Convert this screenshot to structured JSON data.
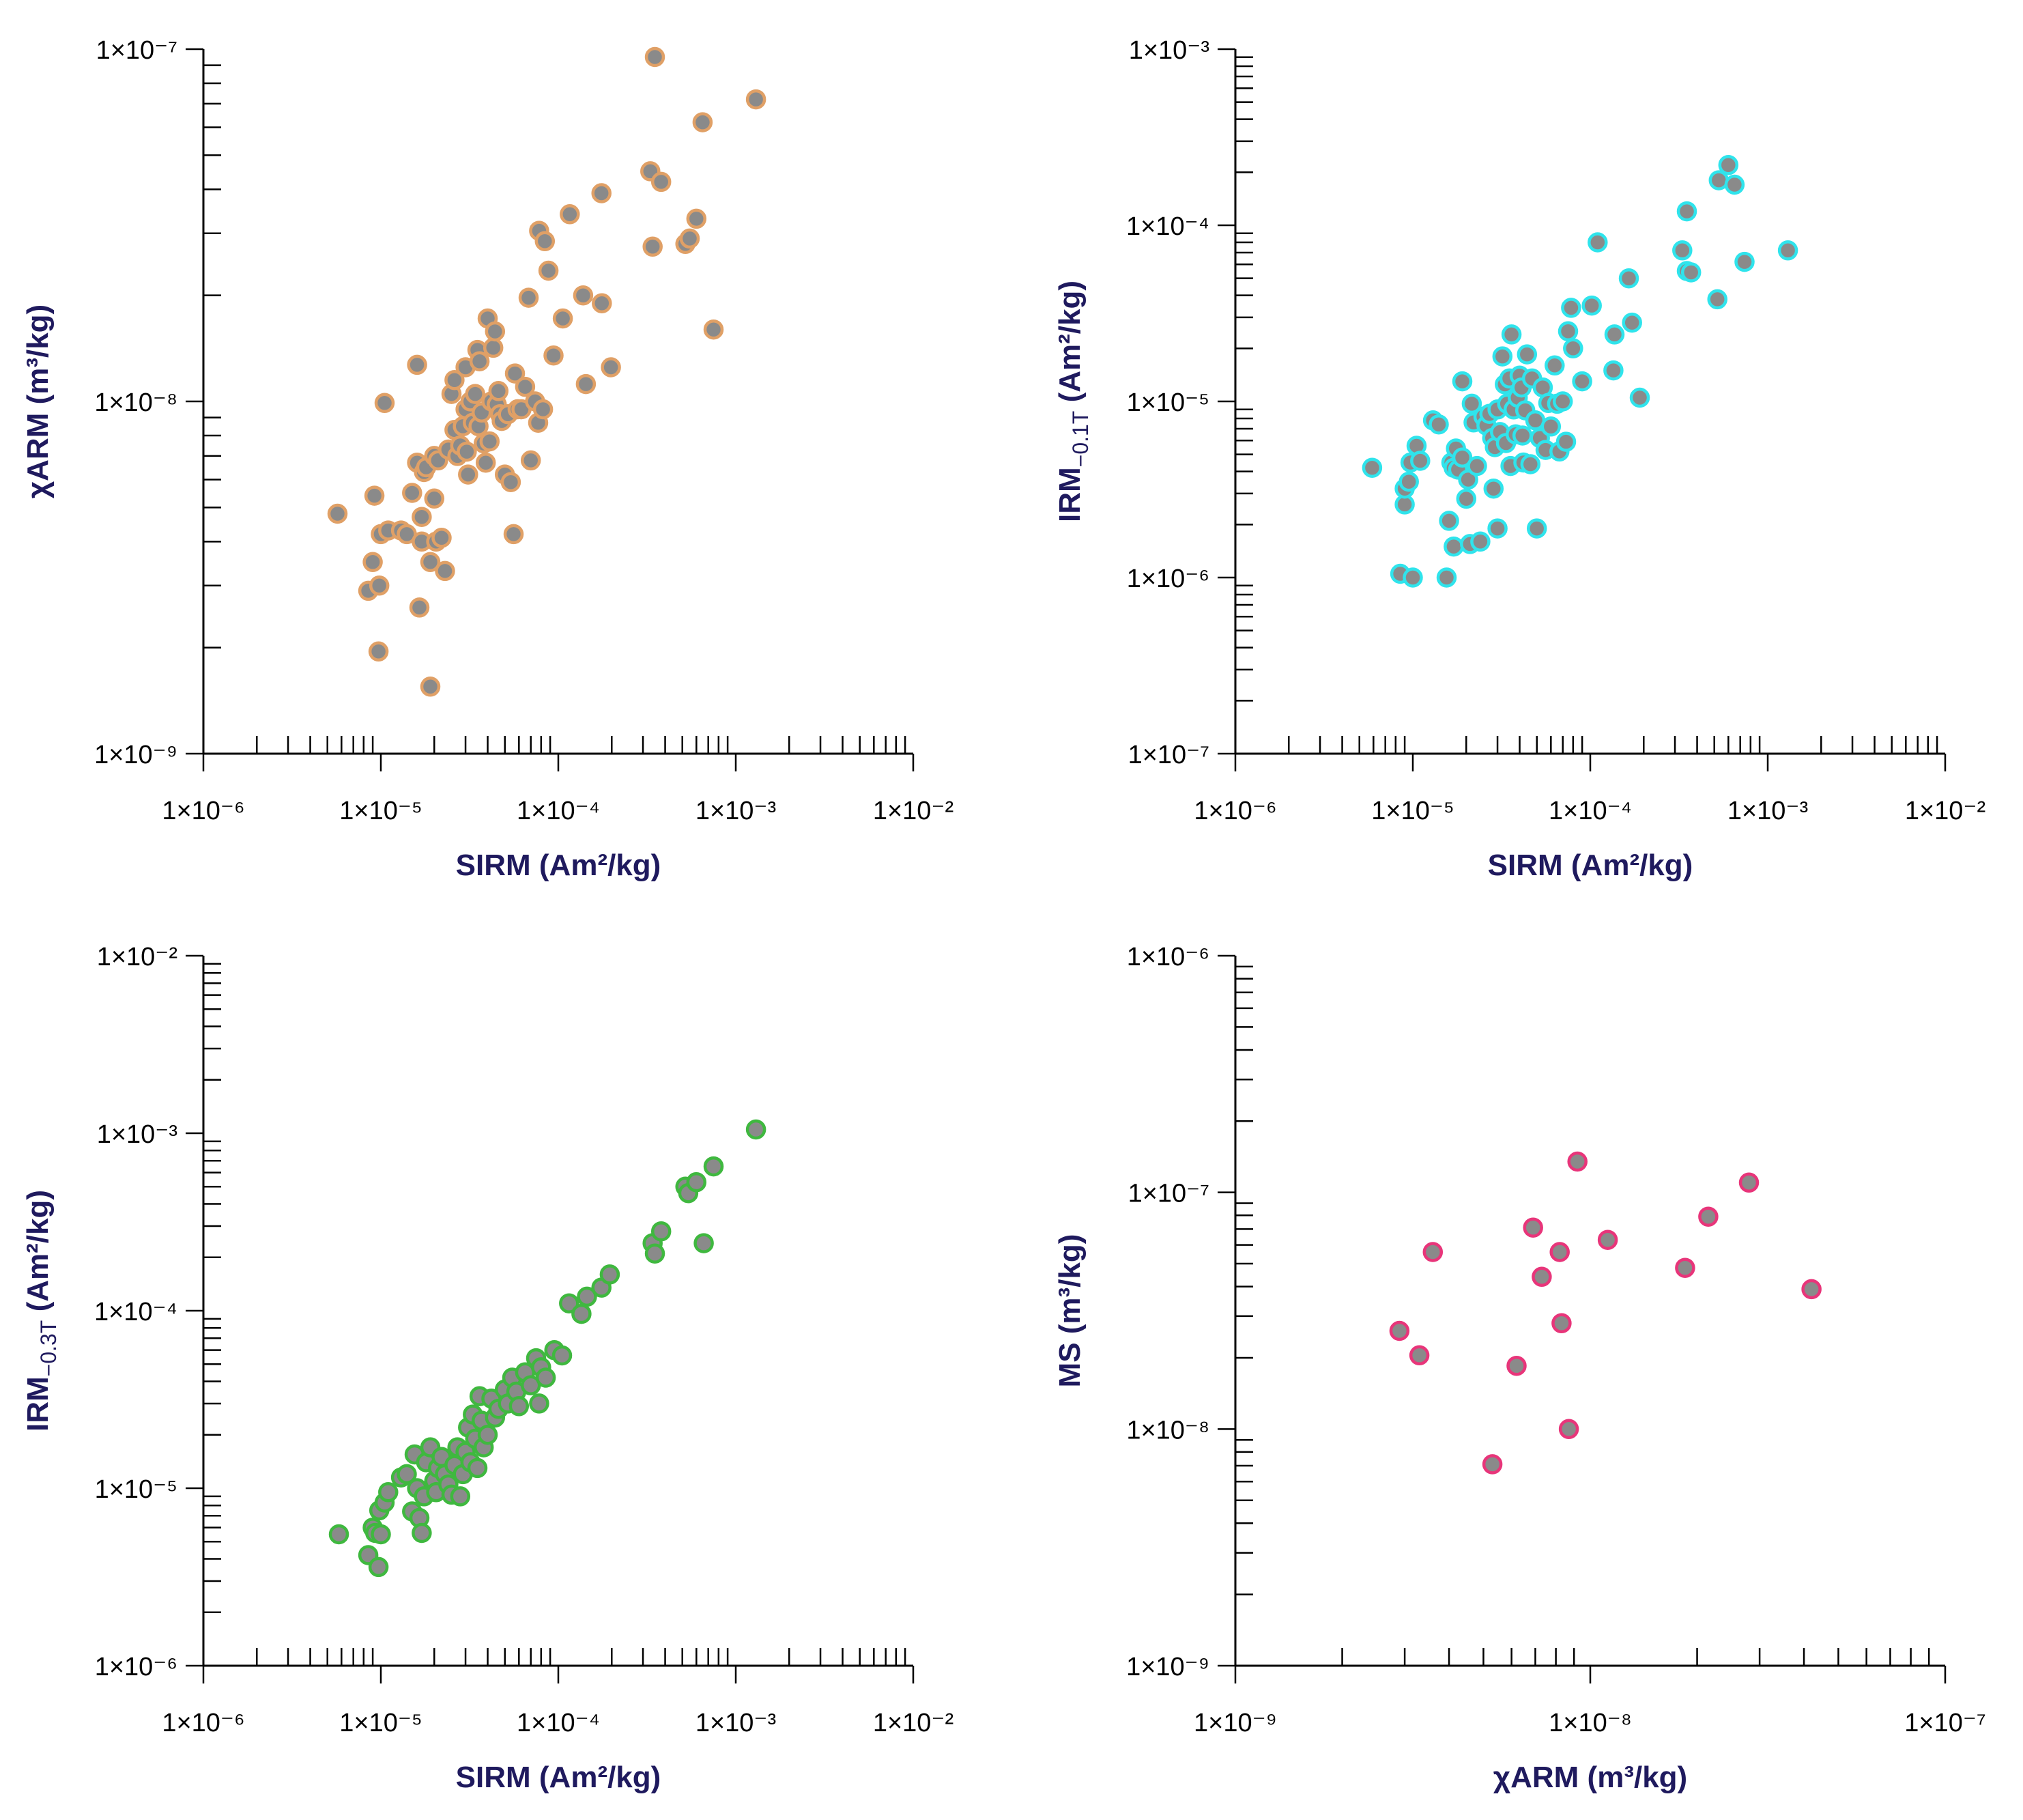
{
  "chart_data": [
    {
      "type": "scatter",
      "xlabel": "SIRM (Am²/kg)",
      "ylabel": "χARM (m³/kg)",
      "x_scale": "log",
      "y_scale": "log",
      "xlim": [
        1e-06,
        0.01
      ],
      "ylim": [
        1e-09,
        1e-07
      ],
      "x_ticks": [
        "1×10⁻⁶",
        "1×10⁻⁵",
        "1×10⁻⁴",
        "1×10⁻³",
        "1×10⁻²"
      ],
      "y_ticks": [
        "1×10⁻⁹",
        "1×10⁻⁸",
        "1×10⁻⁷"
      ],
      "marker_edge_color": "#e0a066",
      "marker_fill_color": "#8a8a8a",
      "points": [
        [
          5.7e-06,
          4.8e-09
        ],
        [
          8.5e-06,
          2.9e-09
        ],
        [
          9e-06,
          3.5e-09
        ],
        [
          9.2e-06,
          5.4e-09
        ],
        [
          9.7e-06,
          1.95e-09
        ],
        [
          9.8e-06,
          3e-09
        ],
        [
          1e-05,
          4.2e-09
        ],
        [
          1.05e-05,
          9.9e-09
        ],
        [
          1.1e-05,
          4.3e-09
        ],
        [
          1.3e-05,
          4.3e-09
        ],
        [
          1.4e-05,
          4.2e-09
        ],
        [
          1.5e-05,
          5.5e-09
        ],
        [
          1.6e-05,
          6.7e-09
        ],
        [
          1.6e-05,
          1.27e-08
        ],
        [
          1.65e-05,
          2.6e-09
        ],
        [
          1.7e-05,
          4.7e-09
        ],
        [
          1.7e-05,
          4e-09
        ],
        [
          1.75e-05,
          6.3e-09
        ],
        [
          1.8e-05,
          6.5e-09
        ],
        [
          1.9e-05,
          1.55e-09
        ],
        [
          1.9e-05,
          3.5e-09
        ],
        [
          2e-05,
          7e-09
        ],
        [
          2e-05,
          5.3e-09
        ],
        [
          2.05e-05,
          4e-09
        ],
        [
          2.1e-05,
          6.8e-09
        ],
        [
          2.2e-05,
          4.1e-09
        ],
        [
          2.3e-05,
          3.3e-09
        ],
        [
          2.4e-05,
          7.3e-09
        ],
        [
          2.5e-05,
          1.05e-08
        ],
        [
          2.6e-05,
          1.15e-08
        ],
        [
          2.6e-05,
          8.3e-09
        ],
        [
          2.7e-05,
          7e-09
        ],
        [
          2.8e-05,
          7.5e-09
        ],
        [
          2.9e-05,
          8.5e-09
        ],
        [
          3e-05,
          1.25e-08
        ],
        [
          3e-05,
          9.5e-09
        ],
        [
          3.05e-05,
          7.2e-09
        ],
        [
          3.1e-05,
          6.2e-09
        ],
        [
          3.2e-05,
          1e-08
        ],
        [
          3.3e-05,
          8.7e-09
        ],
        [
          3.4e-05,
          1.05e-08
        ],
        [
          3.5e-05,
          1.4e-08
        ],
        [
          3.55e-05,
          8.5e-09
        ],
        [
          3.6e-05,
          1.3e-08
        ],
        [
          3.7e-05,
          9.3e-09
        ],
        [
          3.8e-05,
          7.6e-09
        ],
        [
          3.9e-05,
          6.7e-09
        ],
        [
          4e-05,
          1.72e-08
        ],
        [
          4.1e-05,
          7.7e-09
        ],
        [
          4.2e-05,
          1e-08
        ],
        [
          4.3e-05,
          1.42e-08
        ],
        [
          4.4e-05,
          1.58e-08
        ],
        [
          4.5e-05,
          9.8e-09
        ],
        [
          4.6e-05,
          1.07e-08
        ],
        [
          4.7e-05,
          9.2e-09
        ],
        [
          4.8e-05,
          8.8e-09
        ],
        [
          5e-05,
          6.2e-09
        ],
        [
          5.2e-05,
          9.2e-09
        ],
        [
          5.4e-05,
          5.9e-09
        ],
        [
          5.6e-05,
          4.2e-09
        ],
        [
          5.7e-05,
          1.2e-08
        ],
        [
          5.9e-05,
          9.5e-09
        ],
        [
          6.2e-05,
          9.5e-09
        ],
        [
          6.5e-05,
          1.1e-08
        ],
        [
          6.8e-05,
          1.97e-08
        ],
        [
          7e-05,
          6.8e-09
        ],
        [
          7.4e-05,
          1e-08
        ],
        [
          7.7e-05,
          8.7e-09
        ],
        [
          7.8e-05,
          3.05e-08
        ],
        [
          8.2e-05,
          9.5e-09
        ],
        [
          8.4e-05,
          2.85e-08
        ],
        [
          8.8e-05,
          2.35e-08
        ],
        [
          9.4e-05,
          1.35e-08
        ],
        [
          0.000106,
          1.72e-08
        ],
        [
          0.000116,
          3.4e-08
        ],
        [
          0.000138,
          2e-08
        ],
        [
          0.000143,
          1.12e-08
        ],
        [
          0.000175,
          3.9e-08
        ],
        [
          0.000176,
          1.9e-08
        ],
        [
          0.000198,
          1.25e-08
        ],
        [
          0.00033,
          4.5e-08
        ],
        [
          0.00034,
          2.75e-08
        ],
        [
          0.00035,
          9.5e-08
        ],
        [
          0.00038,
          4.2e-08
        ],
        [
          0.00052,
          2.8e-08
        ],
        [
          0.00055,
          2.9e-08
        ],
        [
          0.0006,
          3.3e-08
        ],
        [
          0.00065,
          6.2e-08
        ],
        [
          0.00075,
          1.6e-08
        ],
        [
          0.0013,
          7.2e-08
        ]
      ]
    },
    {
      "type": "scatter",
      "xlabel": "SIRM (Am²/kg)",
      "ylabel_main": "IRM",
      "ylabel_sub": "−0.1T",
      "ylabel_unit": " (Am²/kg)",
      "x_scale": "log",
      "y_scale": "log",
      "xlim": [
        1e-06,
        0.01
      ],
      "ylim": [
        1e-07,
        0.001
      ],
      "x_ticks": [
        "1×10⁻⁶",
        "1×10⁻⁵",
        "1×10⁻⁴",
        "1×10⁻³",
        "1×10⁻²"
      ],
      "y_ticks": [
        "1×10⁻⁷",
        "1×10⁻⁶",
        "1×10⁻⁵",
        "1×10⁻⁴",
        "1×10⁻³"
      ],
      "marker_edge_color": "#2fe4ec",
      "marker_fill_color": "#8a8a8a",
      "points": [
        [
          5.9e-06,
          4.2e-06
        ],
        [
          8.5e-06,
          1.05e-06
        ],
        [
          9e-06,
          2.6e-06
        ],
        [
          9e-06,
          3.2e-06
        ],
        [
          9.5e-06,
          3.5e-06
        ],
        [
          9.7e-06,
          4.5e-06
        ],
        [
          1e-05,
          1e-06
        ],
        [
          1.05e-05,
          5.6e-06
        ],
        [
          1.1e-05,
          4.6e-06
        ],
        [
          1.3e-05,
          7.8e-06
        ],
        [
          1.4e-05,
          7.4e-06
        ],
        [
          1.55e-05,
          1e-06
        ],
        [
          1.6e-05,
          2.1e-06
        ],
        [
          1.65e-05,
          4.5e-06
        ],
        [
          1.7e-05,
          1.5e-06
        ],
        [
          1.7e-05,
          4.2e-06
        ],
        [
          1.75e-05,
          5.4e-06
        ],
        [
          1.8e-05,
          4.1e-06
        ],
        [
          1.9e-05,
          1.3e-05
        ],
        [
          1.9e-05,
          4.8e-06
        ],
        [
          2e-05,
          2.8e-06
        ],
        [
          2.05e-05,
          3.6e-06
        ],
        [
          2.1e-05,
          1.55e-06
        ],
        [
          2.15e-05,
          9.7e-06
        ],
        [
          2.2e-05,
          7.6e-06
        ],
        [
          2.3e-05,
          4.3e-06
        ],
        [
          2.4e-05,
          1.6e-06
        ],
        [
          2.5e-05,
          8.2e-06
        ],
        [
          2.6e-05,
          7.3e-06
        ],
        [
          2.7e-05,
          8.5e-06
        ],
        [
          2.8e-05,
          6.2e-06
        ],
        [
          2.85e-05,
          3.2e-06
        ],
        [
          2.9e-05,
          5.5e-06
        ],
        [
          3e-05,
          1.9e-06
        ],
        [
          3e-05,
          9e-06
        ],
        [
          3.1e-05,
          6.7e-06
        ],
        [
          3.2e-05,
          1.8e-05
        ],
        [
          3.3e-05,
          1.25e-05
        ],
        [
          3.35e-05,
          5.8e-06
        ],
        [
          3.4e-05,
          9.7e-06
        ],
        [
          3.5e-05,
          1.35e-05
        ],
        [
          3.55e-05,
          4.3e-06
        ],
        [
          3.6e-05,
          2.4e-05
        ],
        [
          3.7e-05,
          9e-06
        ],
        [
          3.8e-05,
          6.5e-06
        ],
        [
          3.9e-05,
          1.05e-05
        ],
        [
          4e-05,
          1.4e-05
        ],
        [
          4.1e-05,
          1.2e-05
        ],
        [
          4.15e-05,
          6.4e-06
        ],
        [
          4.2e-05,
          4.5e-06
        ],
        [
          4.3e-05,
          8.9e-06
        ],
        [
          4.4e-05,
          1.85e-05
        ],
        [
          4.6e-05,
          4.4e-06
        ],
        [
          4.7e-05,
          1.35e-05
        ],
        [
          4.9e-05,
          7.8e-06
        ],
        [
          5e-05,
          1.9e-06
        ],
        [
          5.2e-05,
          6.2e-06
        ],
        [
          5.4e-05,
          1.2e-05
        ],
        [
          5.6e-05,
          5.3e-06
        ],
        [
          5.8e-05,
          9.8e-06
        ],
        [
          6e-05,
          7.2e-06
        ],
        [
          6.3e-05,
          1.6e-05
        ],
        [
          6.5e-05,
          9.7e-06
        ],
        [
          6.7e-05,
          5.2e-06
        ],
        [
          7e-05,
          1e-05
        ],
        [
          7.3e-05,
          5.9e-06
        ],
        [
          7.5e-05,
          2.5e-05
        ],
        [
          7.8e-05,
          3.4e-05
        ],
        [
          8e-05,
          2e-05
        ],
        [
          9e-05,
          1.3e-05
        ],
        [
          0.000102,
          3.5e-05
        ],
        [
          0.00011,
          8e-05
        ],
        [
          0.000135,
          1.5e-05
        ],
        [
          0.000137,
          2.4e-05
        ],
        [
          0.000165,
          5e-05
        ],
        [
          0.000172,
          2.8e-05
        ],
        [
          0.00019,
          1.05e-05
        ],
        [
          0.00033,
          7.2e-05
        ],
        [
          0.00035,
          5.5e-05
        ],
        [
          0.00035,
          0.00012
        ],
        [
          0.00037,
          5.4e-05
        ],
        [
          0.00052,
          3.8e-05
        ],
        [
          0.00053,
          0.00018
        ],
        [
          0.0006,
          0.00022
        ],
        [
          0.00065,
          0.00017
        ],
        [
          0.00074,
          6.2e-05
        ],
        [
          0.0013,
          7.2e-05
        ]
      ]
    },
    {
      "type": "scatter",
      "xlabel": "SIRM (Am²/kg)",
      "ylabel_main": "IRM",
      "ylabel_sub": "−0.3T",
      "ylabel_unit": " (Am²/kg)",
      "x_scale": "log",
      "y_scale": "log",
      "xlim": [
        1e-06,
        0.01
      ],
      "ylim": [
        1e-06,
        0.01
      ],
      "x_ticks": [
        "1×10⁻⁶",
        "1×10⁻⁵",
        "1×10⁻⁴",
        "1×10⁻³",
        "1×10⁻²"
      ],
      "y_ticks": [
        "1×10⁻⁶",
        "1×10⁻⁵",
        "1×10⁻⁴",
        "1×10⁻³",
        "1×10⁻²"
      ],
      "marker_edge_color": "#3fb83f",
      "marker_fill_color": "#8a8a8a",
      "points": [
        [
          5.8e-06,
          5.5e-06
        ],
        [
          8.5e-06,
          4.2e-06
        ],
        [
          9e-06,
          6e-06
        ],
        [
          9.3e-06,
          5.6e-06
        ],
        [
          9.7e-06,
          3.6e-06
        ],
        [
          9.8e-06,
          7.5e-06
        ],
        [
          1e-05,
          5.5e-06
        ],
        [
          1.05e-05,
          8.3e-06
        ],
        [
          1.1e-05,
          9.5e-06
        ],
        [
          1.3e-05,
          1.15e-05
        ],
        [
          1.4e-05,
          1.2e-05
        ],
        [
          1.5e-05,
          7.4e-06
        ],
        [
          1.55e-05,
          1.55e-05
        ],
        [
          1.6e-05,
          1e-05
        ],
        [
          1.65e-05,
          6.8e-06
        ],
        [
          1.7e-05,
          5.6e-06
        ],
        [
          1.75e-05,
          9e-06
        ],
        [
          1.8e-05,
          1.4e-05
        ],
        [
          1.9e-05,
          1.7e-05
        ],
        [
          2e-05,
          1.1e-05
        ],
        [
          2.05e-05,
          9.5e-06
        ],
        [
          2.1e-05,
          1.3e-05
        ],
        [
          2.2e-05,
          1.5e-05
        ],
        [
          2.3e-05,
          1.2e-05
        ],
        [
          2.4e-05,
          1.05e-05
        ],
        [
          2.5e-05,
          9.2e-06
        ],
        [
          2.6e-05,
          1.35e-05
        ],
        [
          2.7e-05,
          1.7e-05
        ],
        [
          2.8e-05,
          9e-06
        ],
        [
          2.9e-05,
          1.2e-05
        ],
        [
          3e-05,
          1.6e-05
        ],
        [
          3.1e-05,
          2.2e-05
        ],
        [
          3.2e-05,
          1.4e-05
        ],
        [
          3.3e-05,
          2.6e-05
        ],
        [
          3.4e-05,
          1.9e-05
        ],
        [
          3.5e-05,
          1.3e-05
        ],
        [
          3.6e-05,
          3.3e-05
        ],
        [
          3.7e-05,
          2.4e-05
        ],
        [
          3.8e-05,
          1.7e-05
        ],
        [
          4e-05,
          2e-05
        ],
        [
          4.2e-05,
          3.2e-05
        ],
        [
          4.4e-05,
          2.5e-05
        ],
        [
          4.6e-05,
          2.8e-05
        ],
        [
          5e-05,
          3.6e-05
        ],
        [
          5.2e-05,
          3e-05
        ],
        [
          5.5e-05,
          4.2e-05
        ],
        [
          5.8e-05,
          3.5e-05
        ],
        [
          6e-05,
          2.9e-05
        ],
        [
          6.5e-05,
          4.5e-05
        ],
        [
          7e-05,
          3.8e-05
        ],
        [
          7.5e-05,
          5.4e-05
        ],
        [
          7.8e-05,
          3e-05
        ],
        [
          8e-05,
          4.8e-05
        ],
        [
          8.5e-05,
          4.2e-05
        ],
        [
          9.5e-05,
          6e-05
        ],
        [
          0.000105,
          5.6e-05
        ],
        [
          0.000115,
          0.00011
        ],
        [
          0.000135,
          9.6e-05
        ],
        [
          0.000145,
          0.00012
        ],
        [
          0.000175,
          0.000135
        ],
        [
          0.000195,
          0.00016
        ],
        [
          0.00034,
          0.00024
        ],
        [
          0.00035,
          0.00021
        ],
        [
          0.00038,
          0.00028
        ],
        [
          0.00052,
          0.0005
        ],
        [
          0.00054,
          0.00046
        ],
        [
          0.0006,
          0.00053
        ],
        [
          0.00066,
          0.00024
        ],
        [
          0.00075,
          0.00065
        ],
        [
          0.0013,
          0.00105
        ]
      ]
    },
    {
      "type": "scatter",
      "xlabel": "χARM (m³/kg)",
      "ylabel": "MS (m³/kg)",
      "x_scale": "log",
      "y_scale": "log",
      "xlim": [
        1e-09,
        1e-07
      ],
      "ylim": [
        1e-09,
        1e-06
      ],
      "x_ticks": [
        "1×10⁻⁹",
        "1×10⁻⁸",
        "1×10⁻⁷"
      ],
      "y_ticks": [
        "1×10⁻⁹",
        "1×10⁻⁸",
        "1×10⁻⁷",
        "1×10⁻⁶"
      ],
      "marker_edge_color": "#e8357a",
      "marker_fill_color": "#8a8a8a",
      "points": [
        [
          2.9e-09,
          2.6e-08
        ],
        [
          3.3e-09,
          2.05e-08
        ],
        [
          3.6e-09,
          5.6e-08
        ],
        [
          5.3e-09,
          7.1e-09
        ],
        [
          6.2e-09,
          1.85e-08
        ],
        [
          6.9e-09,
          7.1e-08
        ],
        [
          7.3e-09,
          4.4e-08
        ],
        [
          8.2e-09,
          5.6e-08
        ],
        [
          8.3e-09,
          2.8e-08
        ],
        [
          8.7e-09,
          1e-08
        ],
        [
          9.2e-09,
          1.35e-07
        ],
        [
          1.12e-08,
          6.3e-08
        ],
        [
          1.85e-08,
          4.8e-08
        ],
        [
          2.15e-08,
          7.9e-08
        ],
        [
          2.8e-08,
          1.1e-07
        ],
        [
          4.2e-08,
          3.9e-08
        ]
      ]
    }
  ]
}
